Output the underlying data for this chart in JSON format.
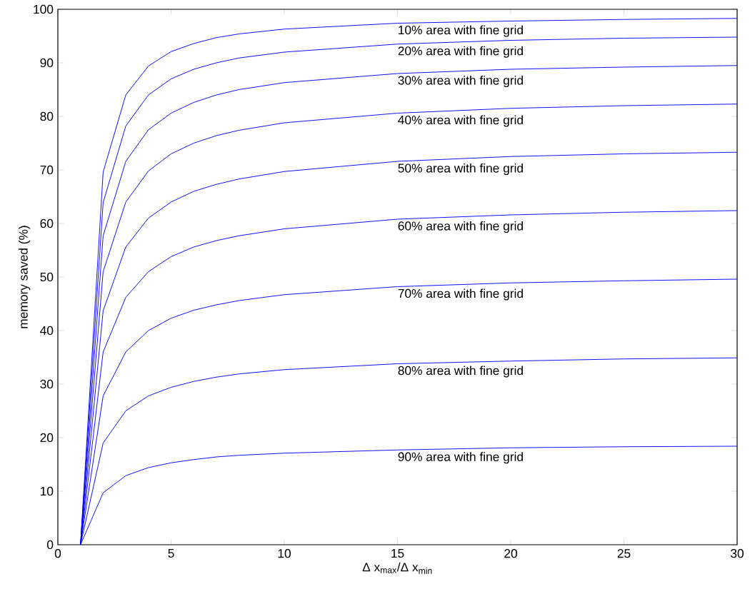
{
  "chart_data": {
    "type": "line",
    "xlabel": "Δ x$_{max}$/Δ x$_{min}$",
    "ylabel": "memory saved (%)",
    "x": [
      1,
      2,
      3,
      4,
      5,
      6,
      7,
      8,
      10,
      15,
      20,
      25,
      30
    ],
    "xlim": [
      0,
      30
    ],
    "xticks": [
      0,
      5,
      10,
      15,
      20,
      25,
      30
    ],
    "ylim": [
      0,
      100
    ],
    "yticks": [
      0,
      10,
      20,
      30,
      40,
      50,
      60,
      70,
      80,
      90,
      100
    ],
    "grid": false,
    "series": [
      {
        "name": "10% area with fine grid",
        "color": "#0000ff",
        "values": [
          0,
          69.6,
          84,
          89.4,
          92.1,
          93.6,
          94.7,
          95.4,
          96.3,
          97.4,
          97.8,
          98.1,
          98.3
        ]
      },
      {
        "name": "20% area with fine grid",
        "color": "#0000ff",
        "values": [
          0,
          63.9,
          78.2,
          84,
          87,
          88.8,
          90,
          90.9,
          92,
          93.5,
          94.2,
          94.6,
          94.8
        ]
      },
      {
        "name": "30% area with fine grid",
        "color": "#0000ff",
        "values": [
          0,
          57.7,
          71.6,
          77.5,
          80.6,
          82.6,
          84,
          85,
          86.3,
          88,
          88.8,
          89.2,
          89.5
        ]
      },
      {
        "name": "40% area with fine grid",
        "color": "#0000ff",
        "values": [
          0,
          51,
          64,
          69.8,
          73,
          75,
          76.4,
          77.4,
          78.8,
          80.6,
          81.5,
          82,
          82.3
        ]
      },
      {
        "name": "50% area with fine grid",
        "color": "#0000ff",
        "values": [
          0,
          43.7,
          55.6,
          61,
          64,
          66,
          67.3,
          68.3,
          69.7,
          71.6,
          72.5,
          73,
          73.3
        ]
      },
      {
        "name": "60% area with fine grid",
        "color": "#0000ff",
        "values": [
          0,
          36,
          46.2,
          51,
          53.8,
          55.6,
          56.8,
          57.7,
          59,
          60.8,
          61.6,
          62.1,
          62.4
        ]
      },
      {
        "name": "70% area with fine grid",
        "color": "#0000ff",
        "values": [
          0,
          27.8,
          36,
          40,
          42.3,
          43.8,
          44.8,
          45.6,
          46.7,
          48.2,
          48.9,
          49.3,
          49.6
        ]
      },
      {
        "name": "80% area with fine grid",
        "color": "#0000ff",
        "values": [
          0,
          19,
          25,
          27.8,
          29.4,
          30.5,
          31.3,
          31.9,
          32.7,
          33.8,
          34.3,
          34.7,
          34.9
        ]
      },
      {
        "name": "90% area with fine grid",
        "color": "#0000ff",
        "values": [
          0,
          9.7,
          12.9,
          14.4,
          15.3,
          15.9,
          16.4,
          16.7,
          17.1,
          17.7,
          18.1,
          18.3,
          18.4
        ]
      }
    ]
  }
}
